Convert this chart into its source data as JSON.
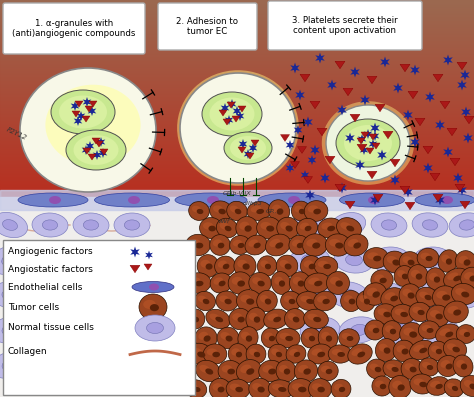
{
  "label1": "1. α-granules with\n(anti)angiogenic compounds",
  "label2": "2. Adhesion to\ntumor EC",
  "label3": "3. Platelets secrete their\ncontent upon activation",
  "legend_items": [
    "Angiogenic factors",
    "Angiostatic factors",
    "Endothelial cells",
    "Tumor cells",
    "Normal tissue cells",
    "Collagen"
  ],
  "granule_color_outer": "#c8e890",
  "granule_color_inner": "#d8f0a0",
  "tumor_cell_color": "#9b4520",
  "tumor_cell_dark": "#5a2208",
  "normal_cell_color": "#c0bce8",
  "normal_cell_inner": "#a8a0e0",
  "endothelial_color": "#5060b8",
  "star_color": "#1a2896",
  "tri_color": "#aa1818",
  "collagen_color": "#c06848",
  "bg_top": "#c04030",
  "bg_bottom": "#f0eeec",
  "platelet_body": "#f8f8e8",
  "platelet_glow": "#ffffaa"
}
